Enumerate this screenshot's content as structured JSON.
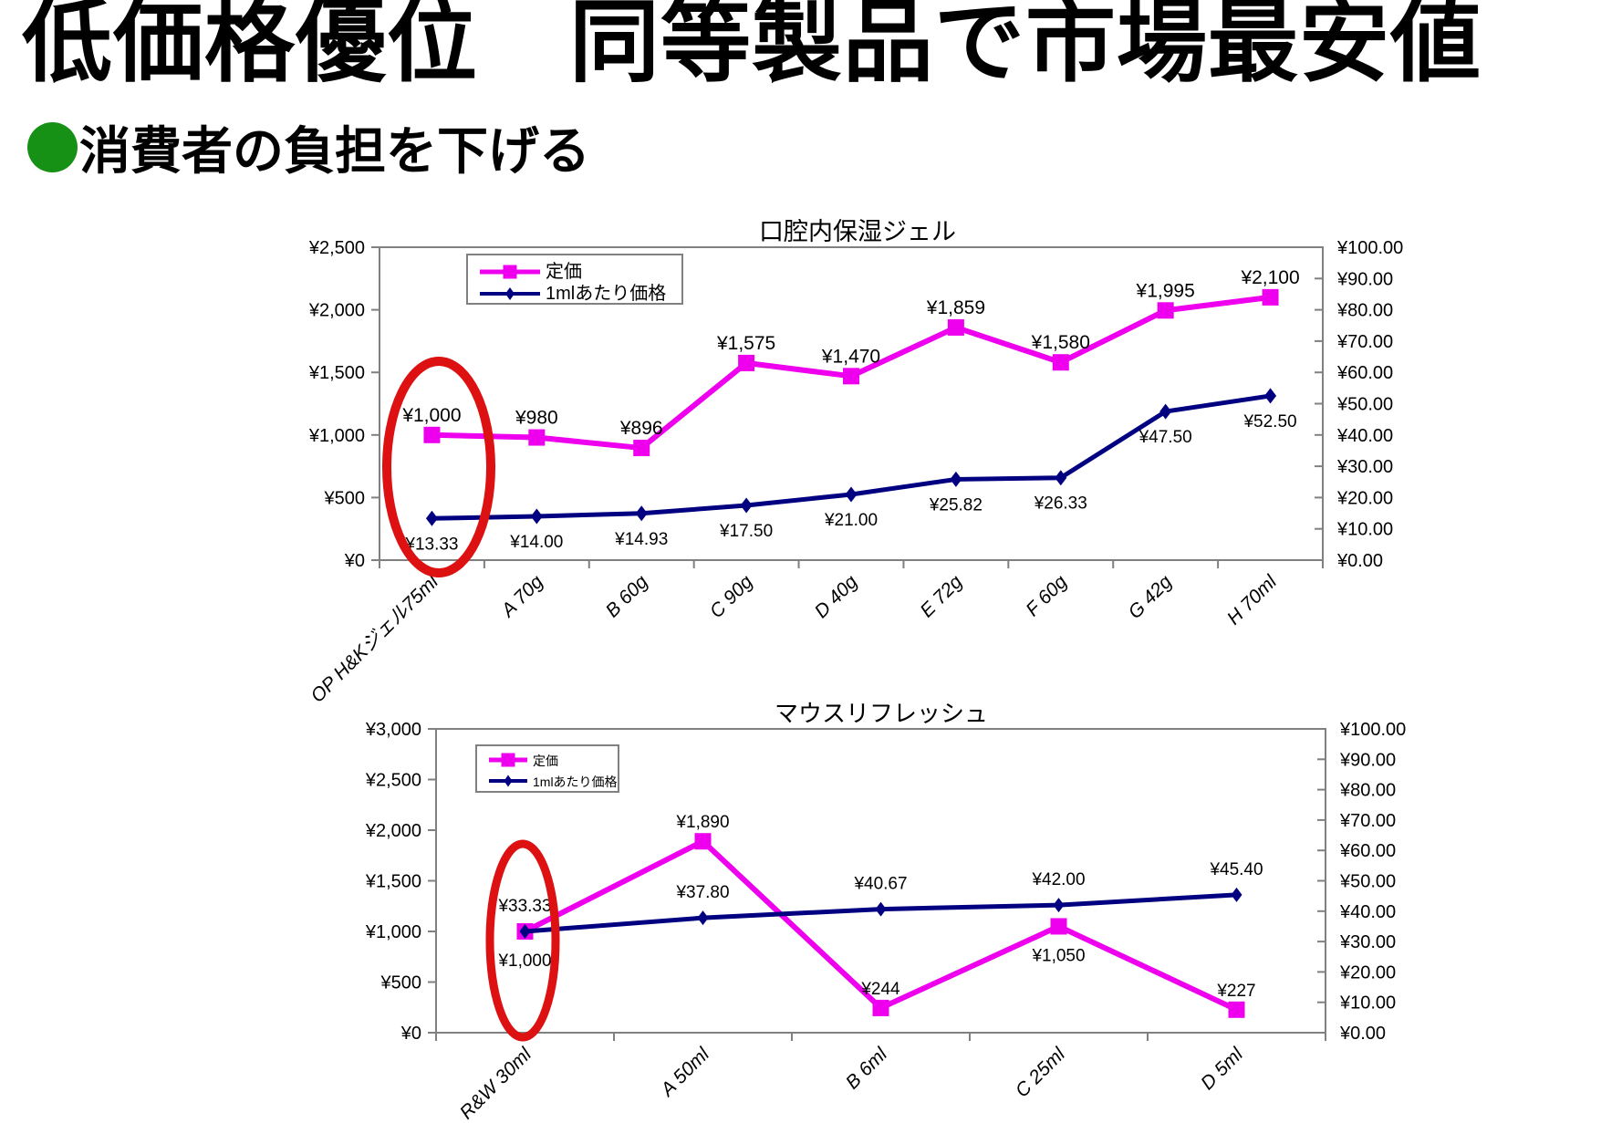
{
  "page": {
    "title": "低価格優位　同等製品で市場最安値",
    "subtitle": "消費者の負担を下げる",
    "bullet_color": "#169116",
    "highlight_color": "#dd1111",
    "frame_color": "#808080"
  },
  "chart_data": [
    {
      "type": "line",
      "title": "口腔内保湿ジェル",
      "categories": [
        "OP H&Kジェル75ml",
        "A 70g",
        "B 60g",
        "C 90g",
        "D 40g",
        "E 72g",
        "F 60g",
        "G 42g",
        "H 70ml"
      ],
      "series": [
        {
          "name": "定価",
          "axis": "left",
          "marker": "square",
          "color": "#ee00ee",
          "values": [
            1000,
            980,
            896,
            1575,
            1470,
            1859,
            1580,
            1995,
            2100
          ],
          "labels": [
            "¥1,000",
            "¥980",
            "¥896",
            "¥1,575",
            "¥1,470",
            "¥1,859",
            "¥1,580",
            "¥1,995",
            "¥2,100"
          ],
          "label_pos": [
            "above",
            "above",
            "above",
            "above",
            "above",
            "above",
            "above",
            "above",
            "above"
          ],
          "label_color": "#1a1a1a"
        },
        {
          "name": "1mlあたり価格",
          "axis": "right",
          "marker": "diamond",
          "color": "#000080",
          "values": [
            13.33,
            14.0,
            14.93,
            17.5,
            21.0,
            25.82,
            26.33,
            47.5,
            52.5
          ],
          "labels": [
            "¥13.33",
            "¥14.00",
            "¥14.93",
            "¥17.50",
            "¥21.00",
            "¥25.82",
            "¥26.33",
            "¥47.50",
            "¥52.50"
          ],
          "label_pos": [
            "below",
            "below",
            "below",
            "below",
            "below",
            "below",
            "below",
            "below",
            "below"
          ],
          "label_color": "#595959"
        }
      ],
      "left_axis": {
        "min": 0,
        "max": 2500,
        "step": 500,
        "tick_labels": [
          "¥2,500",
          "¥2,000",
          "¥1,500",
          "¥1,000",
          "¥500",
          "¥0"
        ]
      },
      "right_axis": {
        "min": 0,
        "max": 100,
        "step": 10,
        "tick_labels": [
          "¥100.00",
          "¥90.00",
          "¥80.00",
          "¥70.00",
          "¥60.00",
          "¥50.00",
          "¥40.00",
          "¥30.00",
          "¥20.00",
          "¥10.00",
          "¥0.00"
        ]
      },
      "legend": {
        "position": "top-left-inside",
        "entries": [
          "定価",
          "1mlあたり価格"
        ]
      },
      "grid": false,
      "annotation": {
        "shape": "red-ellipse",
        "target": "first-category"
      }
    },
    {
      "type": "line",
      "title": "マウスリフレッシュ",
      "categories": [
        "R&W 30ml",
        "A 50ml",
        "B 6ml",
        "C 25ml",
        "D 5ml"
      ],
      "series": [
        {
          "name": "定価",
          "axis": "left",
          "marker": "square",
          "color": "#ee00ee",
          "values": [
            1000,
            1890,
            244,
            1050,
            227
          ],
          "labels": [
            "¥1,000",
            "¥1,890",
            "¥244",
            "¥1,050",
            "¥227"
          ],
          "label_pos": [
            "below",
            "above",
            "above",
            "below",
            "above"
          ],
          "label_color": "#4d4d4d"
        },
        {
          "name": "1mlあたり価格",
          "axis": "right",
          "marker": "diamond",
          "color": "#000080",
          "values": [
            33.33,
            37.8,
            40.67,
            42.0,
            45.4
          ],
          "labels": [
            "¥33.33",
            "¥37.80",
            "¥40.67",
            "¥42.00",
            "¥45.40"
          ],
          "label_pos": [
            "above",
            "above",
            "above",
            "above",
            "above"
          ],
          "label_color": "#4d4d4d"
        }
      ],
      "left_axis": {
        "min": 0,
        "max": 3000,
        "step": 500,
        "tick_labels": [
          "¥3,000",
          "¥2,500",
          "¥2,000",
          "¥1,500",
          "¥1,000",
          "¥500",
          "¥0"
        ]
      },
      "right_axis": {
        "min": 0,
        "max": 100,
        "step": 10,
        "tick_labels": [
          "¥100.00",
          "¥90.00",
          "¥80.00",
          "¥70.00",
          "¥60.00",
          "¥50.00",
          "¥40.00",
          "¥30.00",
          "¥20.00",
          "¥10.00",
          "¥0.00"
        ]
      },
      "legend": {
        "position": "top-left-inside",
        "entries": [
          "定価",
          "1mlあたり価格"
        ]
      },
      "grid": false,
      "annotation": {
        "shape": "red-ellipse",
        "target": "first-category"
      }
    }
  ]
}
